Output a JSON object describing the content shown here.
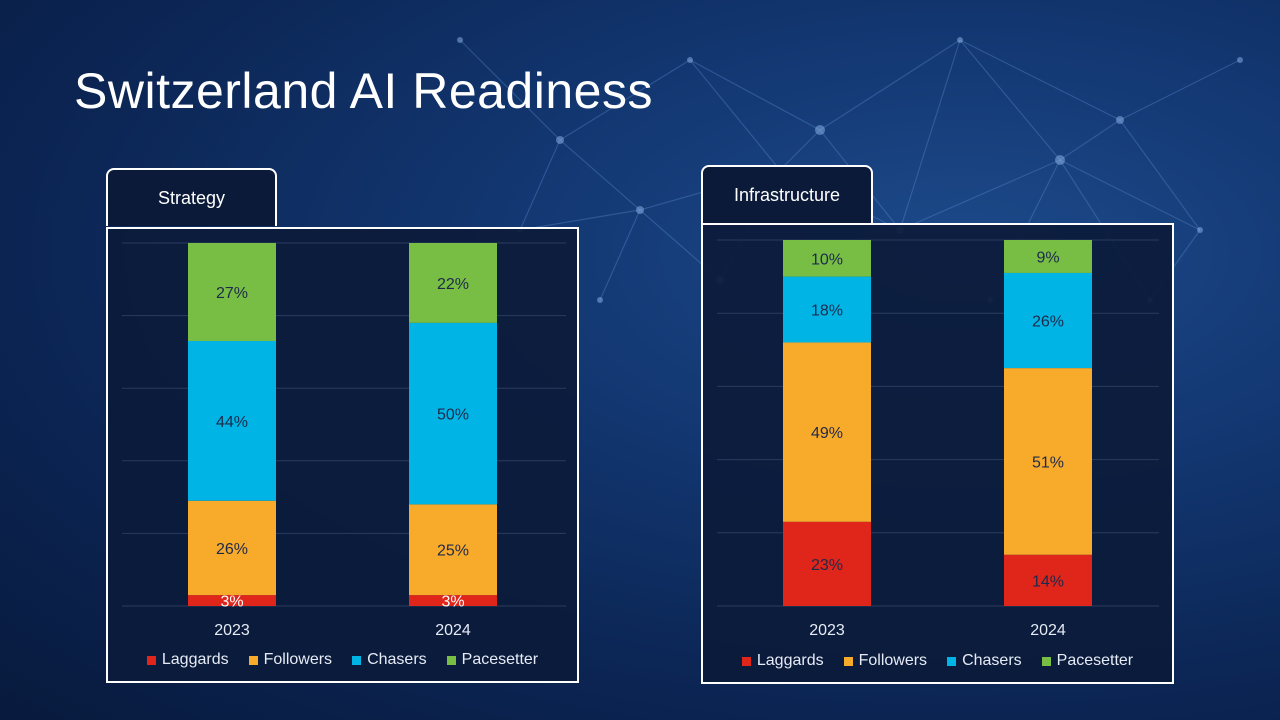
{
  "page": {
    "title": "Switzerland AI Readiness"
  },
  "legend": [
    {
      "label": "Laggards",
      "color": "#e0251b"
    },
    {
      "label": "Followers",
      "color": "#f8aa2b"
    },
    {
      "label": "Chasers",
      "color": "#00b4e6"
    },
    {
      "label": "Pacesetter",
      "color": "#78be44"
    }
  ],
  "chart_data": [
    {
      "type": "bar",
      "stacked": true,
      "title": "Strategy",
      "categories": [
        "2023",
        "2024"
      ],
      "series": [
        {
          "name": "Laggards",
          "values": [
            3,
            3
          ],
          "labels": [
            "3%",
            "3%"
          ],
          "color": "#e0251b"
        },
        {
          "name": "Followers",
          "values": [
            26,
            25
          ],
          "labels": [
            "26%",
            "25%"
          ],
          "color": "#f8aa2b"
        },
        {
          "name": "Chasers",
          "values": [
            44,
            50
          ],
          "labels": [
            "44%",
            "50%"
          ],
          "color": "#00b4e6"
        },
        {
          "name": "Pacesetter",
          "values": [
            27,
            22
          ],
          "labels": [
            "27%",
            "22%"
          ],
          "color": "#78be44"
        }
      ],
      "ylim": [
        0,
        100
      ],
      "grid": true,
      "legend_position": "bottom"
    },
    {
      "type": "bar",
      "stacked": true,
      "title": "Infrastructure",
      "categories": [
        "2023",
        "2024"
      ],
      "series": [
        {
          "name": "Laggards",
          "values": [
            23,
            14
          ],
          "labels": [
            "23%",
            "14%"
          ],
          "color": "#e0251b"
        },
        {
          "name": "Followers",
          "values": [
            49,
            51
          ],
          "labels": [
            "49%",
            "51%"
          ],
          "color": "#f8aa2b"
        },
        {
          "name": "Chasers",
          "values": [
            18,
            26
          ],
          "labels": [
            "18%",
            "26%"
          ],
          "color": "#00b4e6"
        },
        {
          "name": "Pacesetter",
          "values": [
            10,
            9
          ],
          "labels": [
            "10%",
            "9%"
          ],
          "color": "#78be44"
        }
      ],
      "ylim": [
        0,
        100
      ],
      "grid": true,
      "legend_position": "bottom"
    }
  ]
}
